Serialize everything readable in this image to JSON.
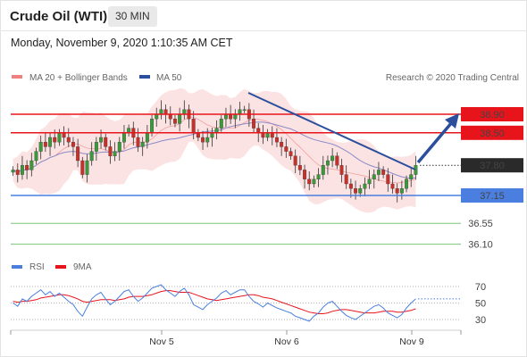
{
  "header": {
    "title": "Crude Oil (WTI)",
    "timeframe": "30 MIN",
    "datetime": "Monday, November 9, 2020 1:10:35 AM CET"
  },
  "legend": {
    "ma20_label": "MA 20 + Bollinger Bands",
    "ma50_label": "MA 50",
    "copyright": "Research © 2020 Trading Central",
    "rsi_label": "RSI",
    "rsi_ma_label": "9MA"
  },
  "colors": {
    "resistance": "#e8141c",
    "support": "#4a7fe0",
    "target_green": "#5cb85c",
    "trend_arrow": "#2b4f9c",
    "bull_candle": "#3a9a3a",
    "bear_candle": "#c8302a",
    "bollinger_fill": "#fcdede",
    "ma20": "#f08080",
    "ma50": "#8a8ac8",
    "rsi": "#4a7fe0",
    "rsi_ma": "#e8141c"
  },
  "chart_data": [
    {
      "type": "candlestick",
      "x_tick_labels": [
        "Nov 5",
        "Nov 6",
        "Nov 9"
      ],
      "ylim": [
        35.6,
        39.6
      ],
      "levels": [
        {
          "value": 38.9,
          "label": "38.90",
          "kind": "resistance"
        },
        {
          "value": 38.5,
          "label": "38.50",
          "kind": "resistance"
        },
        {
          "value": 37.8,
          "label": "37.80",
          "kind": "current"
        },
        {
          "value": 37.15,
          "label": "37.15",
          "kind": "support"
        },
        {
          "value": 36.55,
          "label": "36.55",
          "kind": "target"
        },
        {
          "value": 36.1,
          "label": "36.10",
          "kind": "target"
        }
      ],
      "series": [
        {
          "name": "MA 20 + Bollinger Bands"
        },
        {
          "name": "MA 50"
        }
      ],
      "close": [
        37.7,
        37.6,
        37.8,
        37.7,
        37.9,
        38.1,
        38.3,
        38.2,
        38.4,
        38.3,
        38.5,
        38.4,
        38.3,
        38.2,
        37.9,
        37.6,
        37.9,
        38.1,
        38.3,
        38.4,
        38.2,
        38.0,
        38.1,
        38.3,
        38.5,
        38.6,
        38.4,
        38.2,
        38.3,
        38.5,
        38.8,
        38.9,
        39.0,
        38.9,
        38.8,
        38.7,
        38.9,
        39.0,
        38.8,
        38.5,
        38.4,
        38.3,
        38.4,
        38.5,
        38.6,
        38.8,
        38.9,
        38.8,
        38.9,
        39.0,
        39.0,
        38.8,
        38.6,
        38.5,
        38.4,
        38.5,
        38.4,
        38.3,
        38.2,
        38.1,
        38.0,
        37.8,
        37.7,
        37.5,
        37.4,
        37.5,
        37.6,
        37.8,
        37.9,
        38.0,
        37.8,
        37.6,
        37.4,
        37.3,
        37.2,
        37.3,
        37.4,
        37.5,
        37.6,
        37.7,
        37.6,
        37.4,
        37.3,
        37.2,
        37.3,
        37.5,
        37.6,
        37.8
      ]
    },
    {
      "type": "line",
      "title": "RSI",
      "ylim": [
        20,
        80
      ],
      "y_tick_labels": [
        "70",
        "50",
        "30"
      ],
      "series": [
        {
          "name": "RSI",
          "values": [
            50,
            46,
            55,
            52,
            58,
            62,
            66,
            60,
            64,
            58,
            62,
            57,
            52,
            48,
            40,
            34,
            45,
            55,
            60,
            63,
            55,
            48,
            52,
            58,
            64,
            66,
            58,
            52,
            56,
            62,
            68,
            70,
            72,
            66,
            62,
            58,
            64,
            68,
            60,
            48,
            45,
            42,
            48,
            52,
            56,
            62,
            65,
            60,
            63,
            66,
            66,
            58,
            52,
            49,
            45,
            50,
            47,
            44,
            42,
            40,
            38,
            34,
            32,
            30,
            28,
            34,
            38,
            45,
            50,
            52,
            46,
            40,
            35,
            32,
            30,
            34,
            38,
            42,
            46,
            48,
            44,
            38,
            35,
            32,
            36,
            44,
            50,
            55
          ]
        },
        {
          "name": "9MA",
          "values": [
            52,
            51,
            52,
            52,
            53,
            54,
            56,
            57,
            58,
            59,
            60,
            60,
            59,
            57,
            55,
            52,
            51,
            52,
            53,
            54,
            54,
            54,
            53,
            54,
            55,
            57,
            58,
            58,
            58,
            59,
            60,
            62,
            64,
            65,
            65,
            64,
            63,
            63,
            63,
            61,
            59,
            57,
            55,
            54,
            53,
            54,
            55,
            56,
            57,
            58,
            59,
            60,
            60,
            59,
            57,
            56,
            55,
            53,
            51,
            49,
            47,
            45,
            43,
            41,
            39,
            38,
            37,
            37,
            38,
            40,
            41,
            42,
            42,
            41,
            40,
            39,
            38,
            38,
            38,
            39,
            40,
            40,
            40,
            39,
            39,
            40,
            41,
            43
          ]
        }
      ]
    }
  ]
}
